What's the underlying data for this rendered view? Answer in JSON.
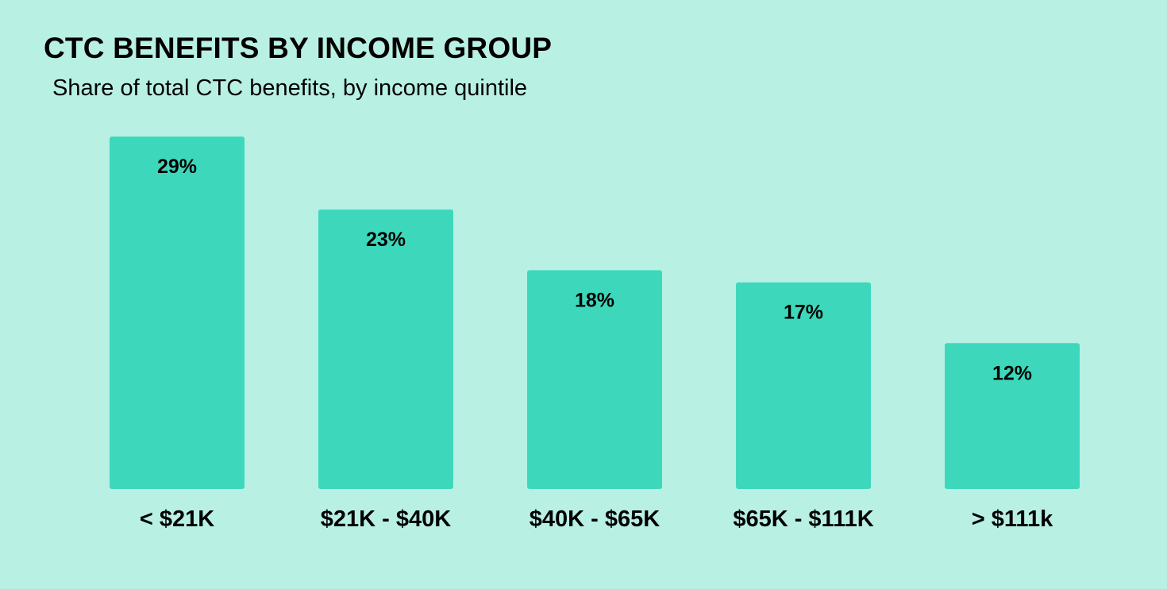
{
  "colors": {
    "background": "#b8f0e4",
    "bar": "#3dd8bc",
    "text": "#000000"
  },
  "chart_data": {
    "type": "bar",
    "title": "CTC BENEFITS BY INCOME GROUP",
    "subtitle": "Share of total CTC benefits, by income quintile",
    "xlabel": "",
    "ylabel": "",
    "categories": [
      "< $21K",
      "$21K - $40K",
      "$40K - $65K",
      "$65K - $111K",
      "> $111k"
    ],
    "values": [
      29,
      23,
      18,
      17,
      12
    ],
    "value_labels": [
      "29%",
      "23%",
      "18%",
      "17%",
      "12%"
    ],
    "ylim": [
      0,
      29
    ],
    "grid": false,
    "legend": "none",
    "axes_visible": false
  }
}
